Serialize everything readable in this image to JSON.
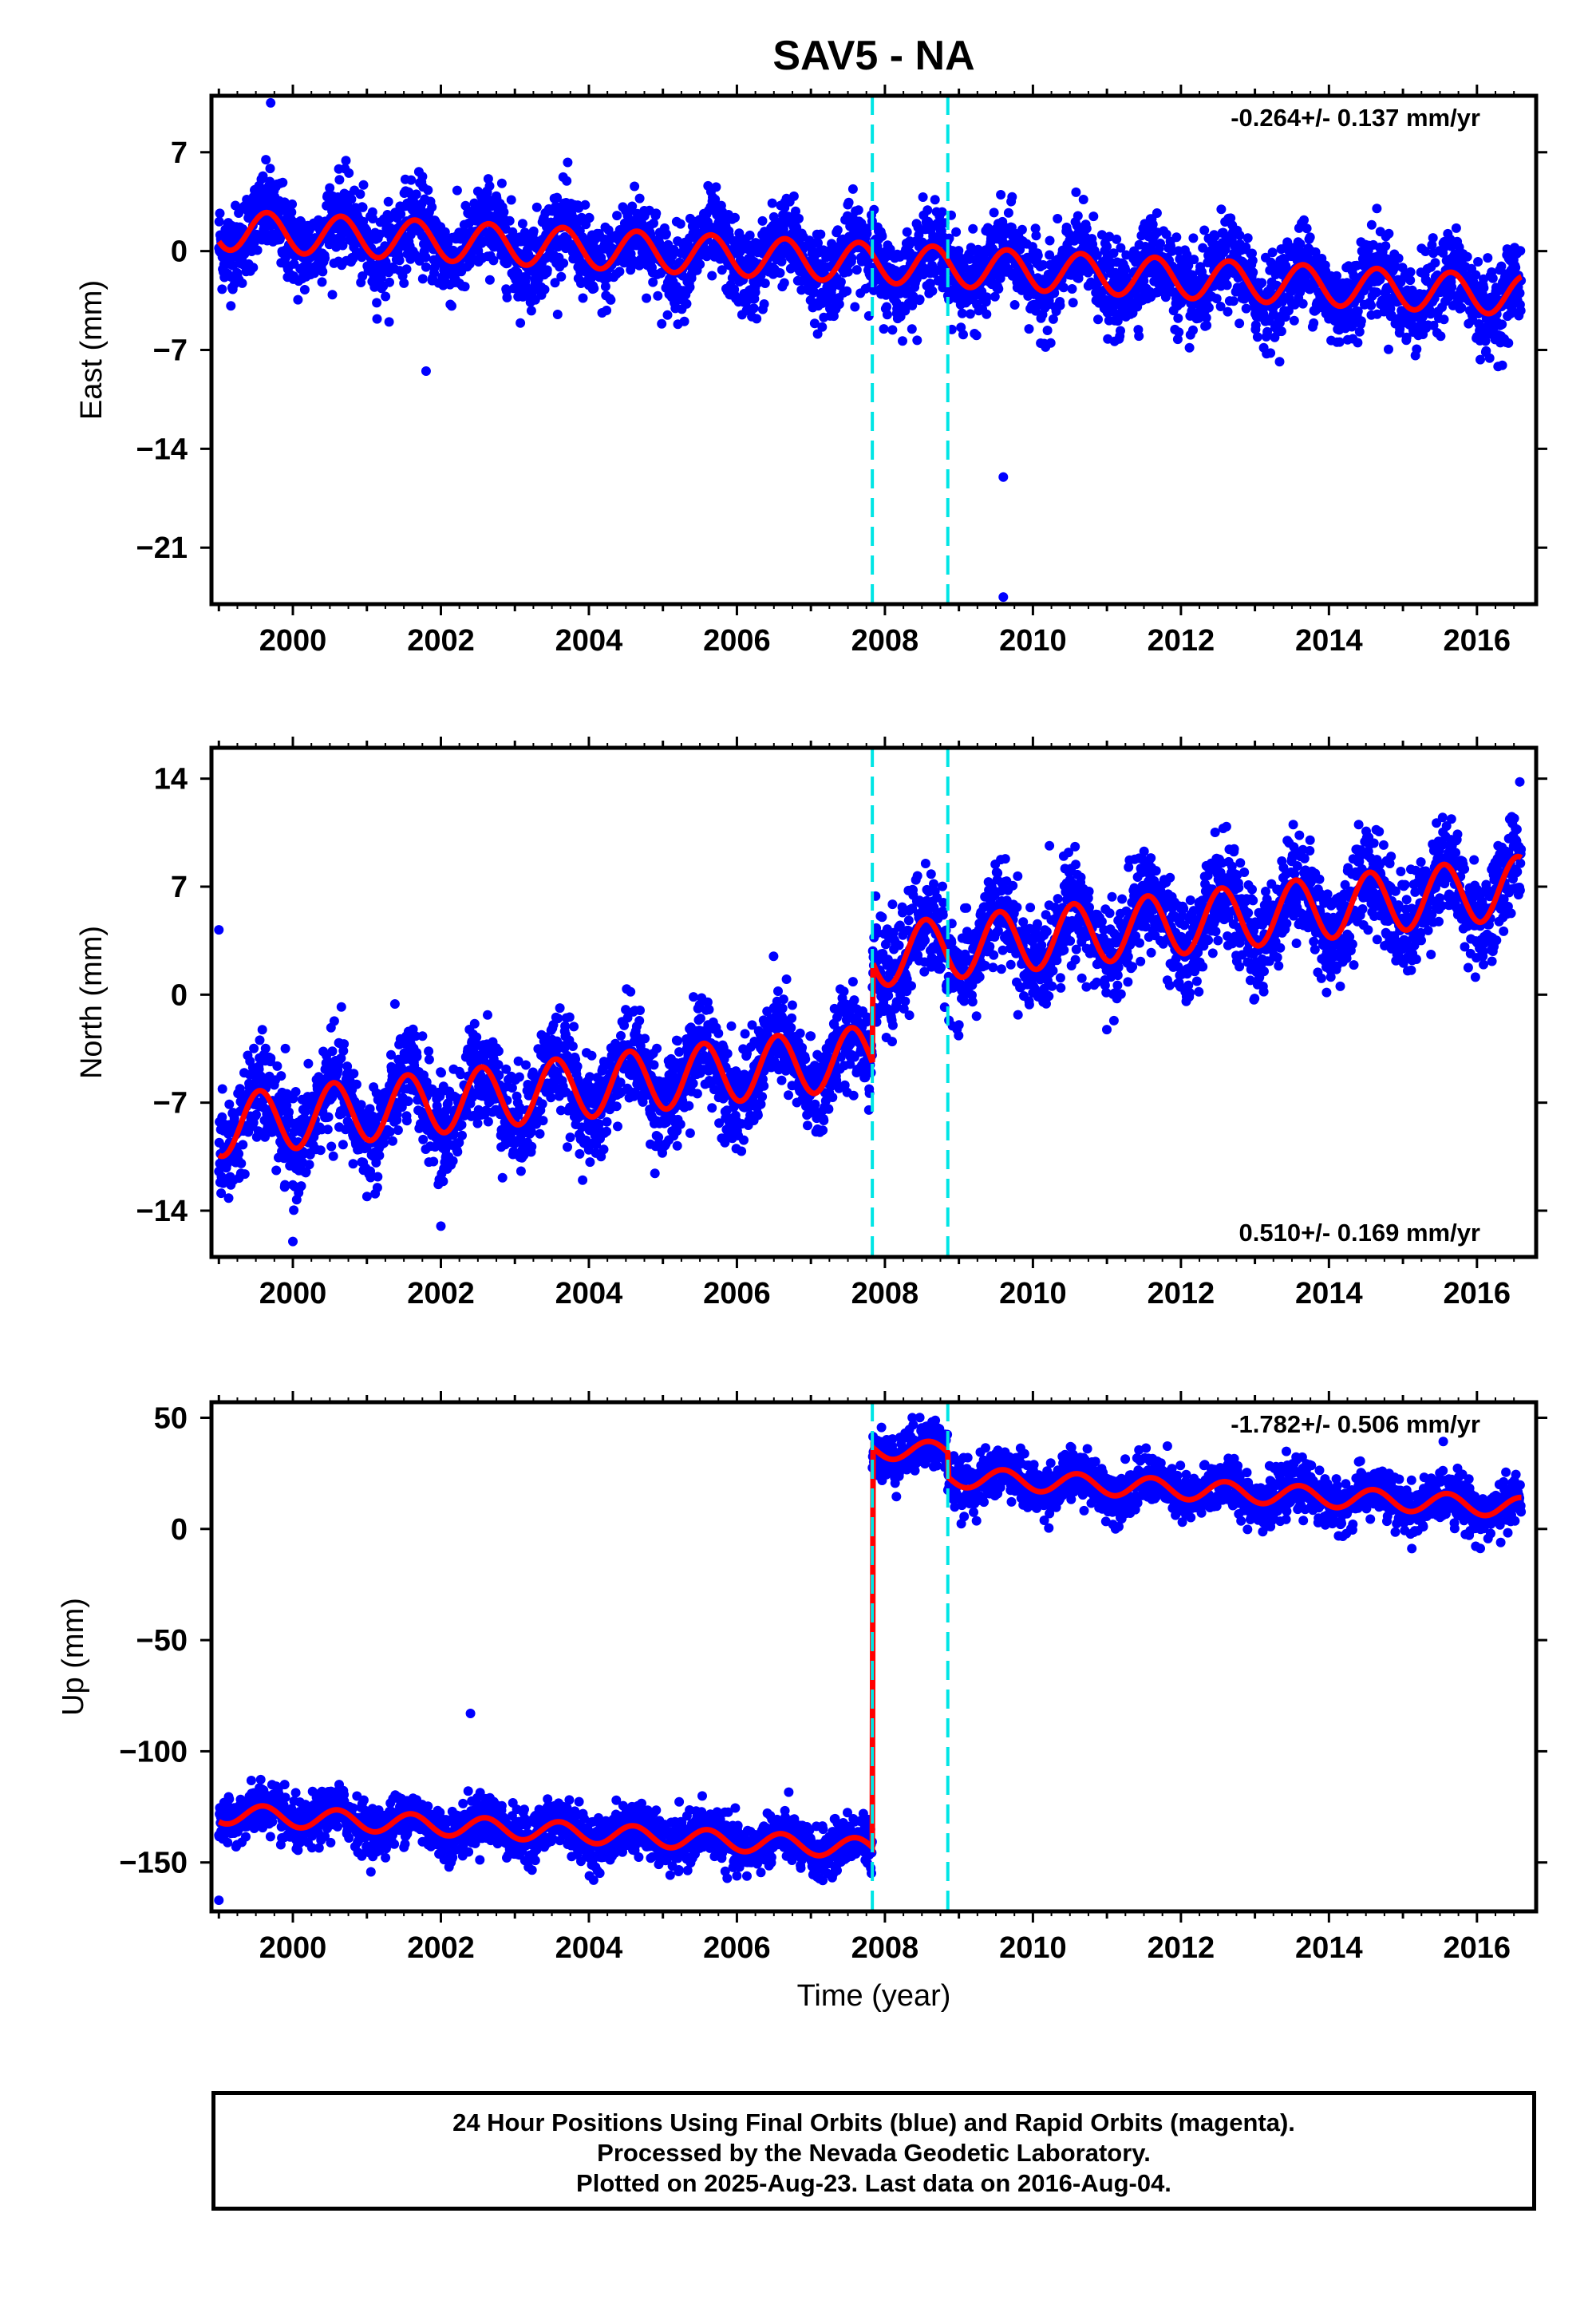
{
  "title": "SAV5 - NA",
  "footer": {
    "line1": "24 Hour Positions Using Final Orbits (blue) and Rapid Orbits (magenta).",
    "line2": "Processed by the Nevada Geodetic Laboratory.",
    "line3": "Plotted on 2025-Aug-23. Last data on 2016-Aug-04."
  },
  "colors": {
    "final_orbits": "#0000ff",
    "model": "#ff0000",
    "event": "#00e5e5"
  },
  "chart_data": [
    {
      "type": "scatter",
      "panel": "east",
      "ylabel": "East (mm)",
      "xlabel": "",
      "xlim": [
        1998.9,
        2016.8
      ],
      "ylim": [
        -25,
        11
      ],
      "yticks": [
        7,
        0,
        -7,
        -14,
        -21
      ],
      "xticks": [
        2000,
        2002,
        2004,
        2006,
        2008,
        2010,
        2012,
        2014,
        2016
      ],
      "rate_label": "-0.264+/- 0.137 mm/yr",
      "rate_position": "top-right",
      "event_lines": [
        2007.83,
        2008.85
      ],
      "model": {
        "start_year": 1999.0,
        "end_year": 2016.6,
        "rate": -0.264,
        "offset_at_start": 1.5,
        "annual_amplitude": 1.4,
        "annual_phase_year": 2000.65,
        "offsets": []
      },
      "outliers": [
        {
          "x": 1999.7,
          "y": 10.5
        },
        {
          "x": 2001.8,
          "y": -8.5
        },
        {
          "x": 2009.6,
          "y": -16.0
        },
        {
          "x": 2009.6,
          "y": -24.5
        }
      ]
    },
    {
      "type": "scatter",
      "panel": "north",
      "ylabel": "North (mm)",
      "xlabel": "",
      "xlim": [
        1998.9,
        2016.8
      ],
      "ylim": [
        -17,
        16
      ],
      "yticks": [
        14,
        7,
        0,
        -7,
        -14
      ],
      "xticks": [
        2000,
        2002,
        2004,
        2006,
        2008,
        2010,
        2012,
        2014,
        2016
      ],
      "rate_label": "0.510+/- 0.169 mm/yr",
      "rate_position": "bottom-right",
      "event_lines": [
        2007.83,
        2008.85
      ],
      "model": {
        "start_year": 1999.0,
        "end_year": 2016.6,
        "rate": 0.51,
        "offset_at_start": -8.5,
        "annual_amplitude": 2.0,
        "annual_phase_year": 2000.55,
        "offsets": [
          {
            "year": 2007.83,
            "size": 6.5
          }
        ]
      },
      "outliers": [
        {
          "x": 1999.0,
          "y": 4.2
        },
        {
          "x": 2000.0,
          "y": -16.0
        },
        {
          "x": 2002.0,
          "y": -15.0
        }
      ]
    },
    {
      "type": "scatter",
      "panel": "up",
      "ylabel": "Up (mm)",
      "xlabel": "Time (year)",
      "xlim": [
        1998.9,
        2016.8
      ],
      "ylim": [
        -172,
        57
      ],
      "yticks": [
        50,
        0,
        -50,
        -100,
        -150
      ],
      "xticks": [
        2000,
        2002,
        2004,
        2006,
        2008,
        2010,
        2012,
        2014,
        2016
      ],
      "rate_label": "-1.782+/- 0.506 mm/yr",
      "rate_position": "top-right",
      "event_lines": [
        2007.83,
        2008.85
      ],
      "model": {
        "start_year": 1999.0,
        "end_year": 2016.6,
        "rate": -1.782,
        "offset_at_start": -128,
        "annual_amplitude": 4.5,
        "annual_phase_year": 2000.6,
        "offsets": [
          {
            "year": 2007.83,
            "size": 180
          },
          {
            "year": 2008.85,
            "size": -11
          }
        ]
      },
      "outliers": [
        {
          "x": 2002.4,
          "y": -83
        },
        {
          "x": 1999.0,
          "y": -167
        }
      ]
    }
  ]
}
